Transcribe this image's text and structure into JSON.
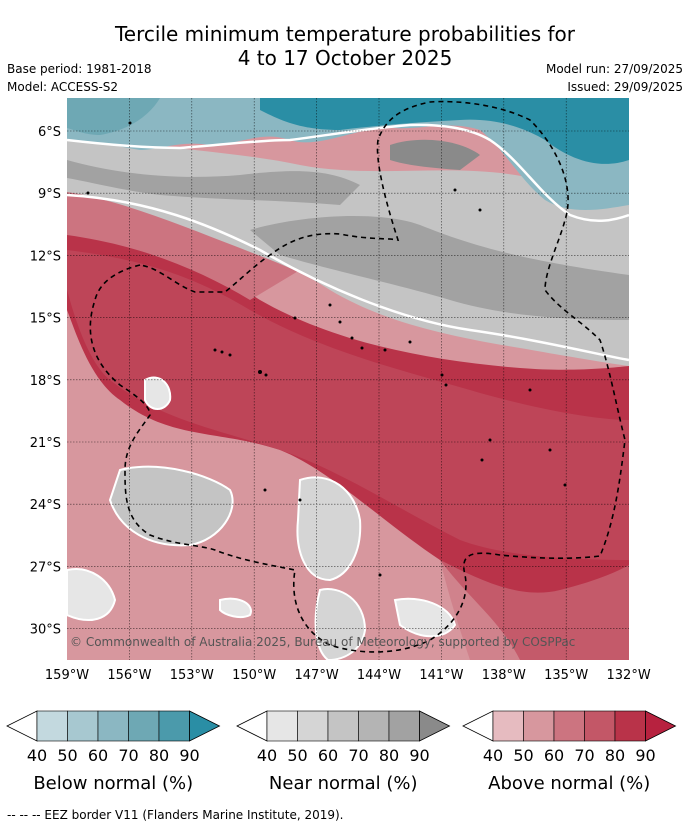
{
  "title_line1": "Tercile minimum temperature probabilities for",
  "title_line2": "4 to 17 October 2025",
  "base_period": "Base period: 1981-2018",
  "model": "Model: ACCESS-S2",
  "model_run": "Model run: 27/09/2025",
  "issued": "Issued: 29/09/2025",
  "copyright": "© Commonwealth of Australia 2025, Bureau of Meteorology, supported by COSPPac",
  "lat_labels": [
    "6°S",
    "9°S",
    "12°S",
    "15°S",
    "18°S",
    "21°S",
    "24°S",
    "27°S",
    "30°S"
  ],
  "lon_labels": [
    "159°W",
    "156°W",
    "153°W",
    "150°W",
    "147°W",
    "144°W",
    "141°W",
    "138°W",
    "135°W",
    "132°W"
  ],
  "colorbars": [
    {
      "label": "Below normal (%)",
      "ticks": [
        "40",
        "50",
        "60",
        "70",
        "80",
        "90"
      ],
      "colors": [
        "#ffffff",
        "#c3d9df",
        "#a7c8d0",
        "#8bb7c2",
        "#6ea8b4",
        "#4b9aab",
        "#2a8ea5"
      ]
    },
    {
      "label": "Near normal (%)",
      "ticks": [
        "40",
        "50",
        "60",
        "70",
        "80",
        "90"
      ],
      "colors": [
        "#ffffff",
        "#e6e6e6",
        "#d5d5d5",
        "#c4c4c4",
        "#b4b4b4",
        "#a2a2a2",
        "#8a8a8a"
      ]
    },
    {
      "label": "Above normal (%)",
      "ticks": [
        "40",
        "50",
        "60",
        "70",
        "80",
        "90"
      ],
      "colors": [
        "#ffffff",
        "#e6bbc0",
        "#d7979e",
        "#cc7480",
        "#c35767",
        "#b93349",
        "#b7223f"
      ]
    }
  ],
  "footer": "-- -- -- EEZ border V11 (Flanders Marine Institute, 2019)."
}
